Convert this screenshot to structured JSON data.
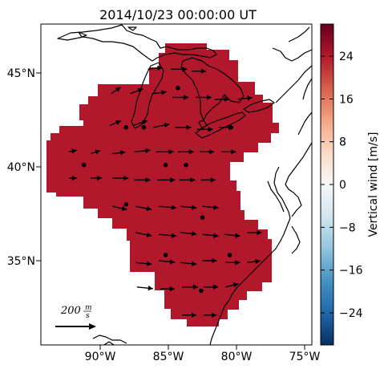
{
  "title": "2014/10/23 00:00:00 UT",
  "map": {
    "lon_ticks": [
      "90°W",
      "85°W",
      "80°W",
      "75°W"
    ],
    "lat_ticks": [
      "45°N",
      "40°N",
      "35°N"
    ],
    "field_color": "#b2182b",
    "coastline_color": "#000000",
    "extent": {
      "lon": [
        -94,
        -75
      ],
      "lat": [
        30.5,
        47.5
      ]
    }
  },
  "colorbar": {
    "label": "Vertical wind [m/s]",
    "ticks": [
      "24",
      "16",
      "8",
      "0",
      "−8",
      "−16",
      "−24"
    ],
    "tick_values": [
      24,
      16,
      8,
      0,
      -8,
      -16,
      -24
    ],
    "range": [
      -30,
      30
    ],
    "colormap": "RdBu_r",
    "colors": [
      "#053061",
      "#2166ac",
      "#4393c3",
      "#92c5de",
      "#d1e5f0",
      "#f7f7f7",
      "#fddbc7",
      "#f4a582",
      "#d6604d",
      "#b2182b",
      "#67001f"
    ]
  },
  "scale_arrow": {
    "value": 200,
    "unit_num": "m",
    "unit_den": "s"
  },
  "chart_data": {
    "type": "map",
    "title": "2014/10/23 00:00:00 UT",
    "uniform_vertical_wind_ms": 25,
    "stations": [
      {
        "lon": -88.1,
        "lat": 42.1
      },
      {
        "lon": -86.8,
        "lat": 42.1
      },
      {
        "lon": -84.3,
        "lat": 44.2
      },
      {
        "lon": -80.4,
        "lat": 42.1
      },
      {
        "lon": -91.2,
        "lat": 40.1
      },
      {
        "lon": -85.2,
        "lat": 40.1
      },
      {
        "lon": -83.7,
        "lat": 40.1
      },
      {
        "lon": -88.1,
        "lat": 38.0
      },
      {
        "lon": -82.5,
        "lat": 37.3
      },
      {
        "lon": -85.2,
        "lat": 35.3
      },
      {
        "lon": -80.5,
        "lat": 35.3
      },
      {
        "lon": -82.6,
        "lat": 33.4
      }
    ],
    "wind_vectors": [
      {
        "lon": -86.5,
        "lat": 45.2,
        "u": 0.9,
        "v": 0.1
      },
      {
        "lon": -84.8,
        "lat": 45.2,
        "u": 1.0,
        "v": 0.0
      },
      {
        "lon": -83.3,
        "lat": 45.1,
        "u": 0.9,
        "v": 0.0
      },
      {
        "lon": -89.2,
        "lat": 43.9,
        "u": 0.6,
        "v": 0.4
      },
      {
        "lon": -87.8,
        "lat": 43.9,
        "u": 0.8,
        "v": 0.3
      },
      {
        "lon": -86.2,
        "lat": 43.9,
        "u": 0.9,
        "v": 0.1
      },
      {
        "lon": -84.7,
        "lat": 43.7,
        "u": 1.0,
        "v": 0.0
      },
      {
        "lon": -83.0,
        "lat": 43.7,
        "u": 1.0,
        "v": 0.0
      },
      {
        "lon": -81.6,
        "lat": 43.6,
        "u": 0.9,
        "v": 0.0
      },
      {
        "lon": -79.9,
        "lat": 43.6,
        "u": 0.9,
        "v": 0.1
      },
      {
        "lon": -89.3,
        "lat": 42.2,
        "u": 0.7,
        "v": 0.3
      },
      {
        "lon": -87.6,
        "lat": 42.2,
        "u": 0.9,
        "v": 0.3
      },
      {
        "lon": -86.1,
        "lat": 42.1,
        "u": 1.0,
        "v": 0.2
      },
      {
        "lon": -84.5,
        "lat": 42.1,
        "u": 1.0,
        "v": 0.0
      },
      {
        "lon": -82.9,
        "lat": 42.0,
        "u": 1.0,
        "v": 0.0
      },
      {
        "lon": -81.3,
        "lat": 42.1,
        "u": 0.9,
        "v": 0.0
      },
      {
        "lon": -92.3,
        "lat": 40.8,
        "u": 0.5,
        "v": 0.1
      },
      {
        "lon": -90.7,
        "lat": 40.7,
        "u": 0.6,
        "v": 0.2
      },
      {
        "lon": -89.1,
        "lat": 40.7,
        "u": 0.8,
        "v": 0.1
      },
      {
        "lon": -87.5,
        "lat": 40.8,
        "u": 1.0,
        "v": 0.1
      },
      {
        "lon": -85.9,
        "lat": 40.8,
        "u": 1.1,
        "v": 0.0
      },
      {
        "lon": -84.3,
        "lat": 40.8,
        "u": 1.0,
        "v": 0.0
      },
      {
        "lon": -82.7,
        "lat": 40.8,
        "u": 0.9,
        "v": 0.0
      },
      {
        "lon": -81.1,
        "lat": 40.8,
        "u": 0.9,
        "v": 0.0
      },
      {
        "lon": -92.3,
        "lat": 39.4,
        "u": 0.5,
        "v": 0.0
      },
      {
        "lon": -90.7,
        "lat": 39.4,
        "u": 0.7,
        "v": 0.0
      },
      {
        "lon": -89.1,
        "lat": 39.4,
        "u": 1.0,
        "v": 0.0
      },
      {
        "lon": -87.5,
        "lat": 39.3,
        "u": 1.0,
        "v": 0.0
      },
      {
        "lon": -85.8,
        "lat": 39.3,
        "u": 1.1,
        "v": 0.0
      },
      {
        "lon": -84.2,
        "lat": 39.3,
        "u": 1.0,
        "v": 0.0
      },
      {
        "lon": -82.6,
        "lat": 39.3,
        "u": 0.9,
        "v": 0.0
      },
      {
        "lon": -89.1,
        "lat": 37.9,
        "u": 0.9,
        "v": -0.2
      },
      {
        "lon": -87.4,
        "lat": 37.9,
        "u": 1.0,
        "v": -0.2
      },
      {
        "lon": -85.7,
        "lat": 37.9,
        "u": 1.1,
        "v": -0.1
      },
      {
        "lon": -84.1,
        "lat": 37.9,
        "u": 1.0,
        "v": -0.1
      },
      {
        "lon": -82.5,
        "lat": 37.9,
        "u": 1.0,
        "v": -0.1
      },
      {
        "lon": -87.4,
        "lat": 36.5,
        "u": 1.0,
        "v": -0.2
      },
      {
        "lon": -85.7,
        "lat": 36.4,
        "u": 1.1,
        "v": -0.1
      },
      {
        "lon": -84.1,
        "lat": 36.5,
        "u": 1.0,
        "v": -0.1
      },
      {
        "lon": -82.5,
        "lat": 36.4,
        "u": 1.0,
        "v": -0.1
      },
      {
        "lon": -80.9,
        "lat": 36.4,
        "u": 1.0,
        "v": -0.1
      },
      {
        "lon": -79.2,
        "lat": 36.5,
        "u": 0.9,
        "v": 0.0
      },
      {
        "lon": -87.4,
        "lat": 34.9,
        "u": 1.0,
        "v": -0.1
      },
      {
        "lon": -85.7,
        "lat": 35.0,
        "u": 1.0,
        "v": -0.1
      },
      {
        "lon": -84.1,
        "lat": 34.9,
        "u": 1.0,
        "v": -0.1
      },
      {
        "lon": -82.5,
        "lat": 35.0,
        "u": 0.9,
        "v": 0.0
      },
      {
        "lon": -80.8,
        "lat": 34.9,
        "u": 0.9,
        "v": 0.0
      },
      {
        "lon": -79.2,
        "lat": 34.9,
        "u": 0.8,
        "v": 0.1
      },
      {
        "lon": -87.3,
        "lat": 33.6,
        "u": 1.0,
        "v": -0.1
      },
      {
        "lon": -85.6,
        "lat": 33.5,
        "u": 0.9,
        "v": 0.0
      },
      {
        "lon": -84.0,
        "lat": 33.6,
        "u": 1.0,
        "v": 0.0
      },
      {
        "lon": -82.4,
        "lat": 33.6,
        "u": 0.9,
        "v": 0.0
      },
      {
        "lon": -80.8,
        "lat": 33.6,
        "u": 0.8,
        "v": 0.2
      },
      {
        "lon": -84.0,
        "lat": 32.1,
        "u": 0.9,
        "v": 0.0
      },
      {
        "lon": -82.4,
        "lat": 32.1,
        "u": 0.8,
        "v": 0.0
      }
    ]
  }
}
